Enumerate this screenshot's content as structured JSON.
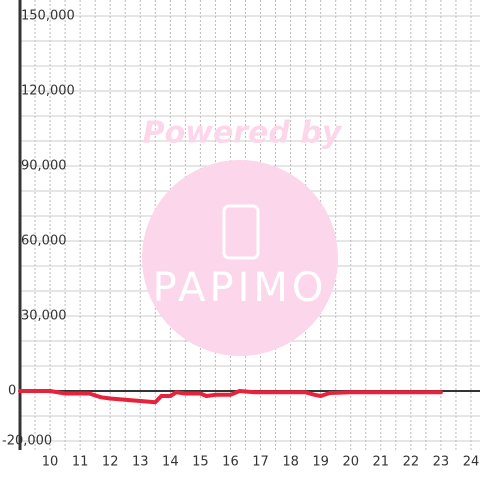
{
  "chart_data": {
    "type": "line",
    "watermark": {
      "top": "Powered by",
      "brand": "PAPIMO"
    },
    "series": [
      {
        "name": null,
        "color": "#e8223a",
        "x": [
          9,
          10,
          10.5,
          11,
          11.3,
          11.7,
          12,
          12.5,
          13,
          13.5,
          13.7,
          14,
          14.2,
          14.5,
          15,
          15.2,
          15.5,
          16,
          16.3,
          16.8,
          17.5,
          18.5,
          18.8,
          19,
          19.3,
          20,
          21,
          22,
          23
        ],
        "values": [
          0,
          0,
          -1000,
          -1000,
          -1000,
          -2500,
          -3000,
          -3500,
          -4000,
          -4500,
          -2000,
          -2000,
          -500,
          -1000,
          -1000,
          -2000,
          -1500,
          -1500,
          0,
          -500,
          -500,
          -500,
          -1500,
          -2000,
          -800,
          -500,
          -500,
          -500,
          -500
        ]
      }
    ],
    "xlim": [
      9,
      24.3
    ],
    "xticks": [
      10,
      11,
      12,
      13,
      14,
      15,
      16,
      17,
      18,
      19,
      20,
      21,
      22,
      23,
      24
    ],
    "x_minor_ticks": [
      9.5,
      10.5,
      11.5,
      12.5,
      13.5,
      14.5,
      15.5,
      16.5,
      17.5,
      18.5,
      19.5,
      20.5,
      21.5,
      22.5,
      23.5
    ],
    "ylim": [
      -20000,
      150000
    ],
    "yticks": [
      {
        "value": 150000,
        "label": "150,000"
      },
      {
        "value": 120000,
        "label": "120,000"
      },
      {
        "value": 90000,
        "label": "90,000"
      },
      {
        "value": 60000,
        "label": "60,000"
      },
      {
        "value": 30000,
        "label": "30,000"
      },
      0,
      {
        "value": -20000,
        "label": "-20,000"
      }
    ],
    "y_minor_ticks": [
      140000,
      130000,
      110000,
      100000,
      80000,
      70000,
      50000,
      40000,
      20000,
      10000,
      -10000
    ],
    "grid": true
  }
}
